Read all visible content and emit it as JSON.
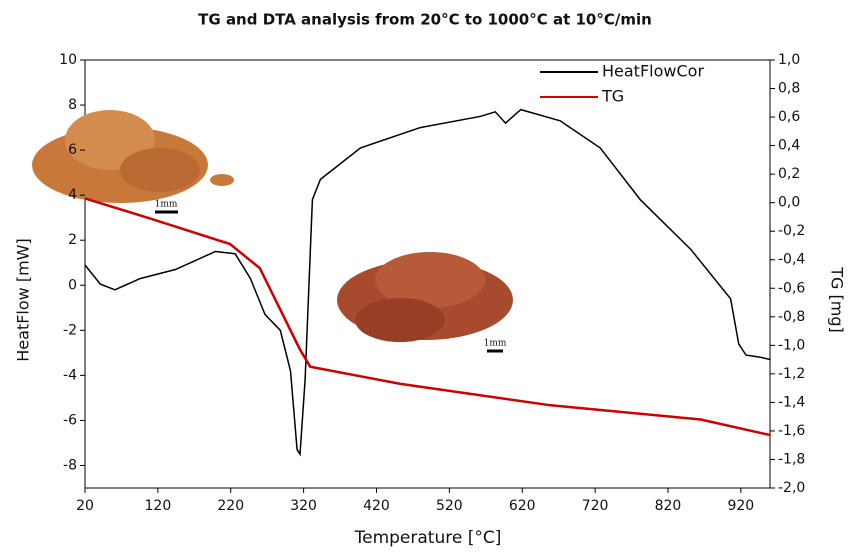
{
  "chart_data": {
    "type": "line",
    "title": "TG and DTA analysis from 20°C to 1000°C at 10°C/min",
    "x_label": "Temperature [°C]",
    "y_label": "HeatFlow [mW]",
    "y2_label": "TG [mg]",
    "annotations": [
      "1mm",
      "1mm"
    ],
    "xlim": [
      20,
      960
    ],
    "xticks": [
      20,
      120,
      220,
      320,
      420,
      520,
      620,
      720,
      820,
      920
    ],
    "ylim": [
      -9,
      10
    ],
    "yticks": [
      -8,
      -6,
      -4,
      -2,
      0,
      2,
      4,
      6,
      8,
      10
    ],
    "y2lim": [
      -2.0,
      1.0
    ],
    "y2ticks": [
      {
        "value": -2.0,
        "label": "-2,0"
      },
      {
        "value": -1.8,
        "label": "-1,8"
      },
      {
        "value": -1.6,
        "label": "-1,6"
      },
      {
        "value": -1.4,
        "label": "-1,4"
      },
      {
        "value": -1.2,
        "label": "-1,2"
      },
      {
        "value": -1.0,
        "label": "-1,0"
      },
      {
        "value": -0.8,
        "label": "-0,8"
      },
      {
        "value": -0.6,
        "label": "-0,6"
      },
      {
        "value": -0.4,
        "label": "-0,4"
      },
      {
        "value": -0.2,
        "label": "-0,2"
      },
      {
        "value": 0.0,
        "label": "0,0"
      },
      {
        "value": 0.2,
        "label": "0,2"
      },
      {
        "value": 0.4,
        "label": "0,4"
      },
      {
        "value": 0.6,
        "label": "0,6"
      },
      {
        "value": 0.8,
        "label": "0,8"
      },
      {
        "value": 1.0,
        "label": "1,0"
      }
    ],
    "legend": "upper right",
    "series": [
      {
        "name": "HeatFlowCor",
        "color": "#000000",
        "x": [
          20,
          41,
          61,
          96,
          144,
          199,
          226,
          247,
          267,
          288,
          302,
          311,
          315,
          322,
          332,
          343,
          398,
          480,
          563,
          583,
          597,
          618,
          672,
          727,
          782,
          851,
          906,
          917,
          927,
          947,
          961
        ],
        "values": [
          0.9,
          0.05,
          -0.2,
          0.3,
          0.7,
          1.5,
          1.4,
          0.3,
          -1.3,
          -2.0,
          -3.8,
          -7.3,
          -7.5,
          -4.2,
          3.8,
          4.7,
          6.1,
          7.0,
          7.5,
          7.7,
          7.2,
          7.8,
          7.3,
          6.1,
          3.8,
          1.6,
          -0.6,
          -2.6,
          -3.1,
          -3.2,
          -3.3
        ]
      },
      {
        "name": "TG",
        "color": "#cc0000",
        "axis": "y2",
        "x": [
          20,
          109,
          219,
          260,
          315,
          329,
          453,
          659,
          865,
          961
        ],
        "values": [
          0.03,
          -0.11,
          -0.29,
          -0.46,
          -1.03,
          -1.15,
          -1.27,
          -1.42,
          -1.52,
          -1.63
        ]
      }
    ]
  }
}
